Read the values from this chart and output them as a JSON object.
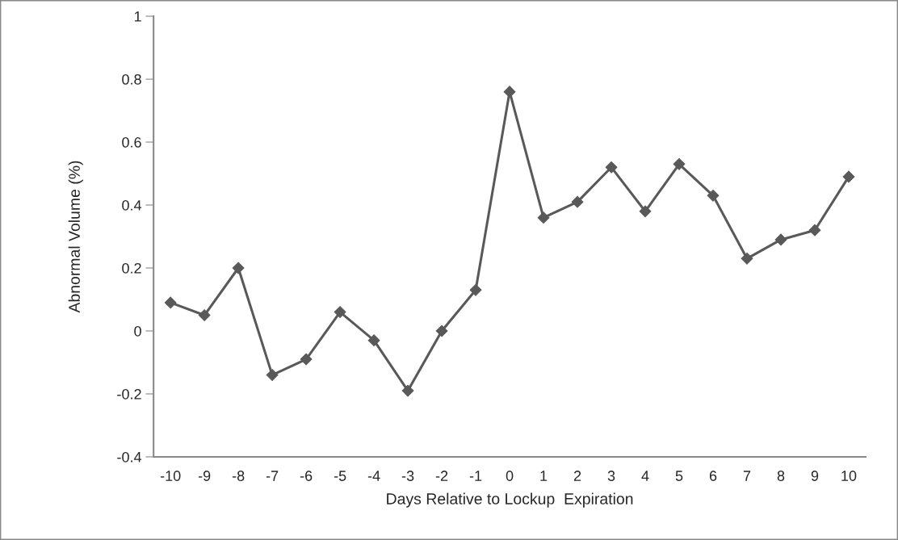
{
  "chart_data": {
    "type": "line",
    "xlabel": "Days Relative to Lockup  Expiration",
    "ylabel": "Abnormal Volume (%)",
    "categories": [
      "-10",
      "-9",
      "-8",
      "-7",
      "-6",
      "-5",
      "-4",
      "-3",
      "-2",
      "-1",
      "0",
      "1",
      "2",
      "3",
      "4",
      "5",
      "6",
      "7",
      "8",
      "9",
      "10"
    ],
    "series": [
      {
        "color": "#595959",
        "values": [
          0.09,
          0.05,
          0.2,
          -0.14,
          -0.09,
          0.06,
          -0.03,
          -0.19,
          0.0,
          0.13,
          0.76,
          0.36,
          0.41,
          0.52,
          0.38,
          0.53,
          0.43,
          0.23,
          0.29,
          0.32,
          0.49
        ]
      }
    ],
    "ylim": [
      -0.4,
      1
    ],
    "yticks": [
      -0.4,
      -0.2,
      0,
      0.2,
      0.4,
      0.6,
      0.8,
      1
    ],
    "marker": "diamond",
    "line_style": "solid",
    "grid": false,
    "legend": false
  }
}
